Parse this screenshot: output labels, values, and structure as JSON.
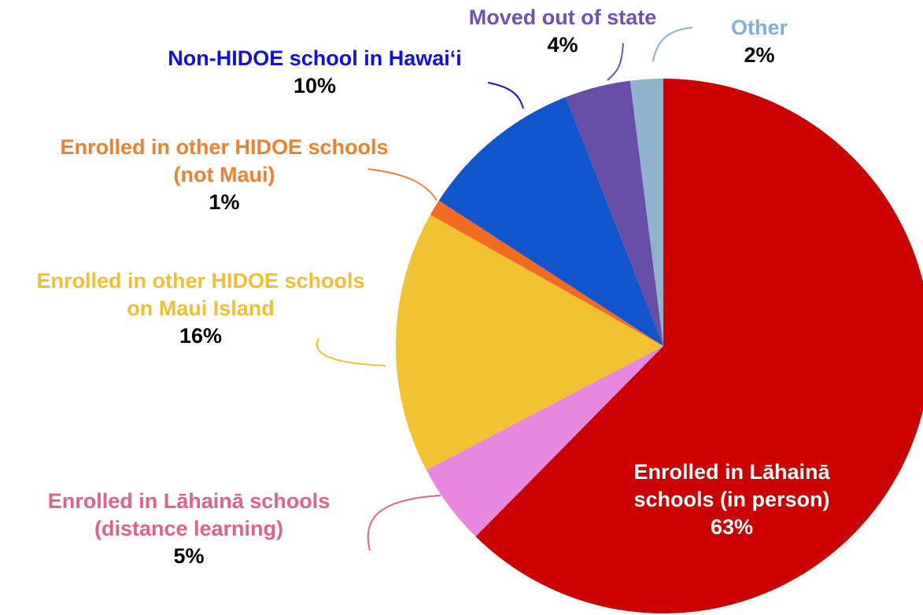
{
  "chart_data": {
    "type": "pie",
    "categories": [
      "Enrolled in Lāhainā schools (in person)",
      "Enrolled in Lāhainā schools (distance learning)",
      "Enrolled in other HIDOE schools on Maui Island",
      "Enrolled in other HIDOE schools (not Maui)",
      "Non-HIDOE school in Hawai‘i",
      "Moved out of state",
      "Other"
    ],
    "values": [
      63,
      5,
      16,
      1,
      10,
      4,
      2
    ],
    "value_labels": [
      "63%",
      "5%",
      "16%",
      "1%",
      "10%",
      "4%",
      "2%"
    ],
    "colors": [
      "#cc0000",
      "#e887e0",
      "#f1c232",
      "#f26b21",
      "#1155cc",
      "#674ea7",
      "#8fb3c8"
    ],
    "label_colors": [
      "#ffffff",
      "#e0608f",
      "#f0bf30",
      "#f08030",
      "#1010e0",
      "#7050b0",
      "#80b0d8"
    ]
  }
}
